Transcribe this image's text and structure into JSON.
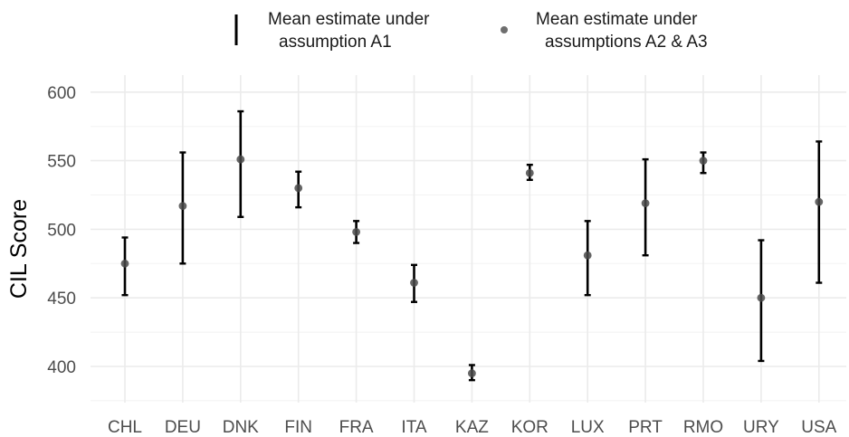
{
  "chart_data": {
    "type": "errorbar",
    "title": "",
    "xlabel": "",
    "ylabel": "CIL Score",
    "ylim": [
      370,
      615
    ],
    "yticks": [
      400,
      450,
      500,
      550,
      600
    ],
    "grid": true,
    "legend_position": "top",
    "colors": {
      "bar": "#000000",
      "point": "#4a4a4a",
      "grid_major": "#ebebeb",
      "grid_minor": "#f4f4f4",
      "text": "#4d4d4d"
    },
    "legend": [
      {
        "key": "interval",
        "line1": "Mean estimate under",
        "line2": "assumption A1"
      },
      {
        "key": "point",
        "line1": "Mean estimate under",
        "line2": "assumptions A2 & A3"
      }
    ],
    "categories": [
      "CHL",
      "DEU",
      "DNK",
      "FIN",
      "FRA",
      "ITA",
      "KAZ",
      "KOR",
      "LUX",
      "PRT",
      "RMO",
      "URY",
      "USA"
    ],
    "series": [
      {
        "name": "Mean estimate under assumption A1",
        "lower": [
          452,
          475,
          509,
          516,
          490,
          447,
          390,
          536,
          452,
          481,
          541,
          404,
          461
        ],
        "upper": [
          494,
          556,
          586,
          542,
          506,
          474,
          401,
          547,
          506,
          551,
          556,
          492,
          564
        ]
      },
      {
        "name": "Mean estimate under assumptions A2 & A3",
        "values": [
          475,
          517,
          551,
          530,
          498,
          461,
          395,
          541,
          481,
          519,
          550,
          450,
          520
        ]
      }
    ]
  }
}
